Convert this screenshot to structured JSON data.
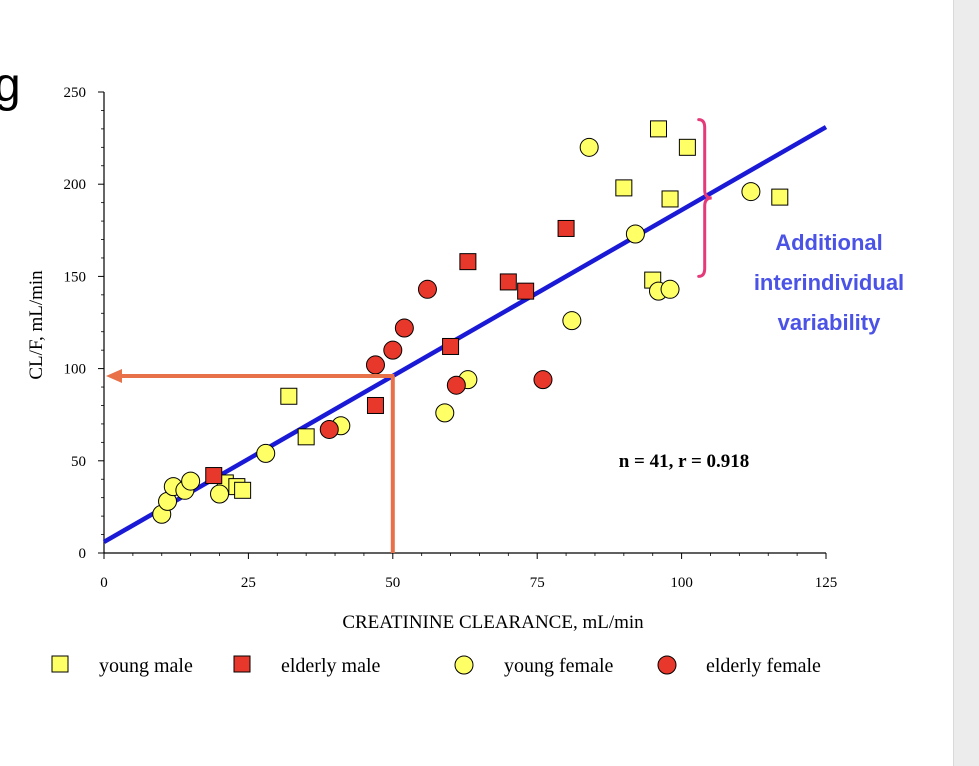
{
  "slide": {
    "title_fragment": "g"
  },
  "chart_data": {
    "type": "scatter",
    "xlabel": "CREATININE CLEARANCE,  mL/min",
    "ylabel": "CL/F,  mL/min",
    "xlim": [
      0,
      125
    ],
    "ylim": [
      0,
      250
    ],
    "x_ticks": [
      0,
      25,
      50,
      75,
      100,
      125
    ],
    "y_ticks": [
      0,
      50,
      100,
      150,
      200,
      250
    ],
    "stats_label": "n = 41,  r = 0.918",
    "annotation": [
      "Additional",
      "interindividual",
      "variability"
    ],
    "regression_line": {
      "x": [
        0,
        125
      ],
      "y": [
        6,
        231
      ],
      "color": "#1a1ad6"
    },
    "arrow_example": {
      "x": 50,
      "y": 96,
      "color": "#e8714a"
    },
    "bracket": {
      "x": 104,
      "y_range": [
        150,
        235
      ],
      "color": "#e53a7a"
    },
    "series": [
      {
        "name": "young male",
        "shape": "square",
        "color": "#ffff66",
        "x": [
          21,
          23,
          24,
          32,
          35,
          90,
          95,
          96,
          98,
          101,
          117
        ],
        "y": [
          38,
          36,
          34,
          85,
          63,
          198,
          148,
          230,
          192,
          220,
          193
        ]
      },
      {
        "name": "elderly male",
        "shape": "square",
        "color": "#e8372b",
        "x": [
          19,
          47,
          60,
          63,
          70,
          73,
          80
        ],
        "y": [
          42,
          80,
          112,
          158,
          147,
          142,
          176
        ]
      },
      {
        "name": "young female",
        "shape": "circle",
        "color": "#ffff66",
        "x": [
          10,
          11,
          12,
          14,
          15,
          20,
          28,
          41,
          59,
          63,
          81,
          84,
          92,
          96,
          98,
          112
        ],
        "y": [
          21,
          28,
          36,
          34,
          39,
          32,
          54,
          69,
          76,
          94,
          126,
          220,
          173,
          142,
          143,
          196
        ]
      },
      {
        "name": "elderly female",
        "shape": "circle",
        "color": "#e8372b",
        "x": [
          39,
          47,
          50,
          52,
          56,
          61,
          76
        ],
        "y": [
          67,
          102,
          110,
          122,
          143,
          91,
          94
        ]
      }
    ]
  }
}
